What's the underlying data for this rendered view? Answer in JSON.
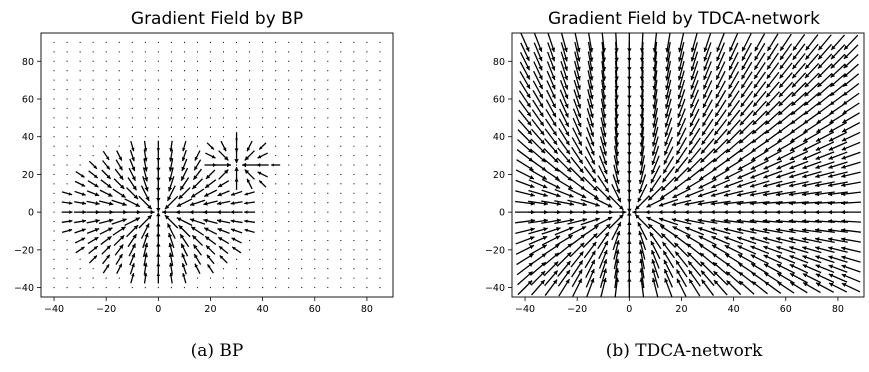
{
  "chart_data": [
    {
      "type": "quiver",
      "title": "Gradient Field by BP",
      "caption": "(a) BP",
      "xlim": [
        -45,
        90
      ],
      "ylim": [
        -45,
        95
      ],
      "xticks": [
        -40,
        -20,
        0,
        20,
        40,
        60,
        80
      ],
      "yticks": [
        -40,
        -20,
        0,
        20,
        40,
        60,
        80
      ],
      "grid": false,
      "field": {
        "x": [
          -40,
          85,
          5
        ],
        "y": [
          -40,
          90,
          5
        ],
        "sinks": [
          {
            "x": 0,
            "y": 0,
            "radius": 38,
            "strength": 1.0
          },
          {
            "x": 30,
            "y": 25,
            "radius": 15,
            "strength": 0.9
          }
        ],
        "background_magnitude": 0.05
      }
    },
    {
      "type": "quiver",
      "title": "Gradient Field by TDCA-network",
      "caption": "(b) TDCA-network",
      "xlim": [
        -45,
        90
      ],
      "ylim": [
        -45,
        95
      ],
      "xticks": [
        -40,
        -20,
        0,
        20,
        40,
        60,
        80
      ],
      "yticks": [
        -40,
        -20,
        0,
        20,
        40,
        60,
        80
      ],
      "grid": false,
      "field": {
        "x": [
          -40,
          85,
          5
        ],
        "y": [
          -40,
          90,
          5
        ],
        "sinks": [
          {
            "x": 0,
            "y": 0,
            "radius": 0,
            "strength": 1.0
          }
        ],
        "background_magnitude": 1.0
      }
    }
  ]
}
